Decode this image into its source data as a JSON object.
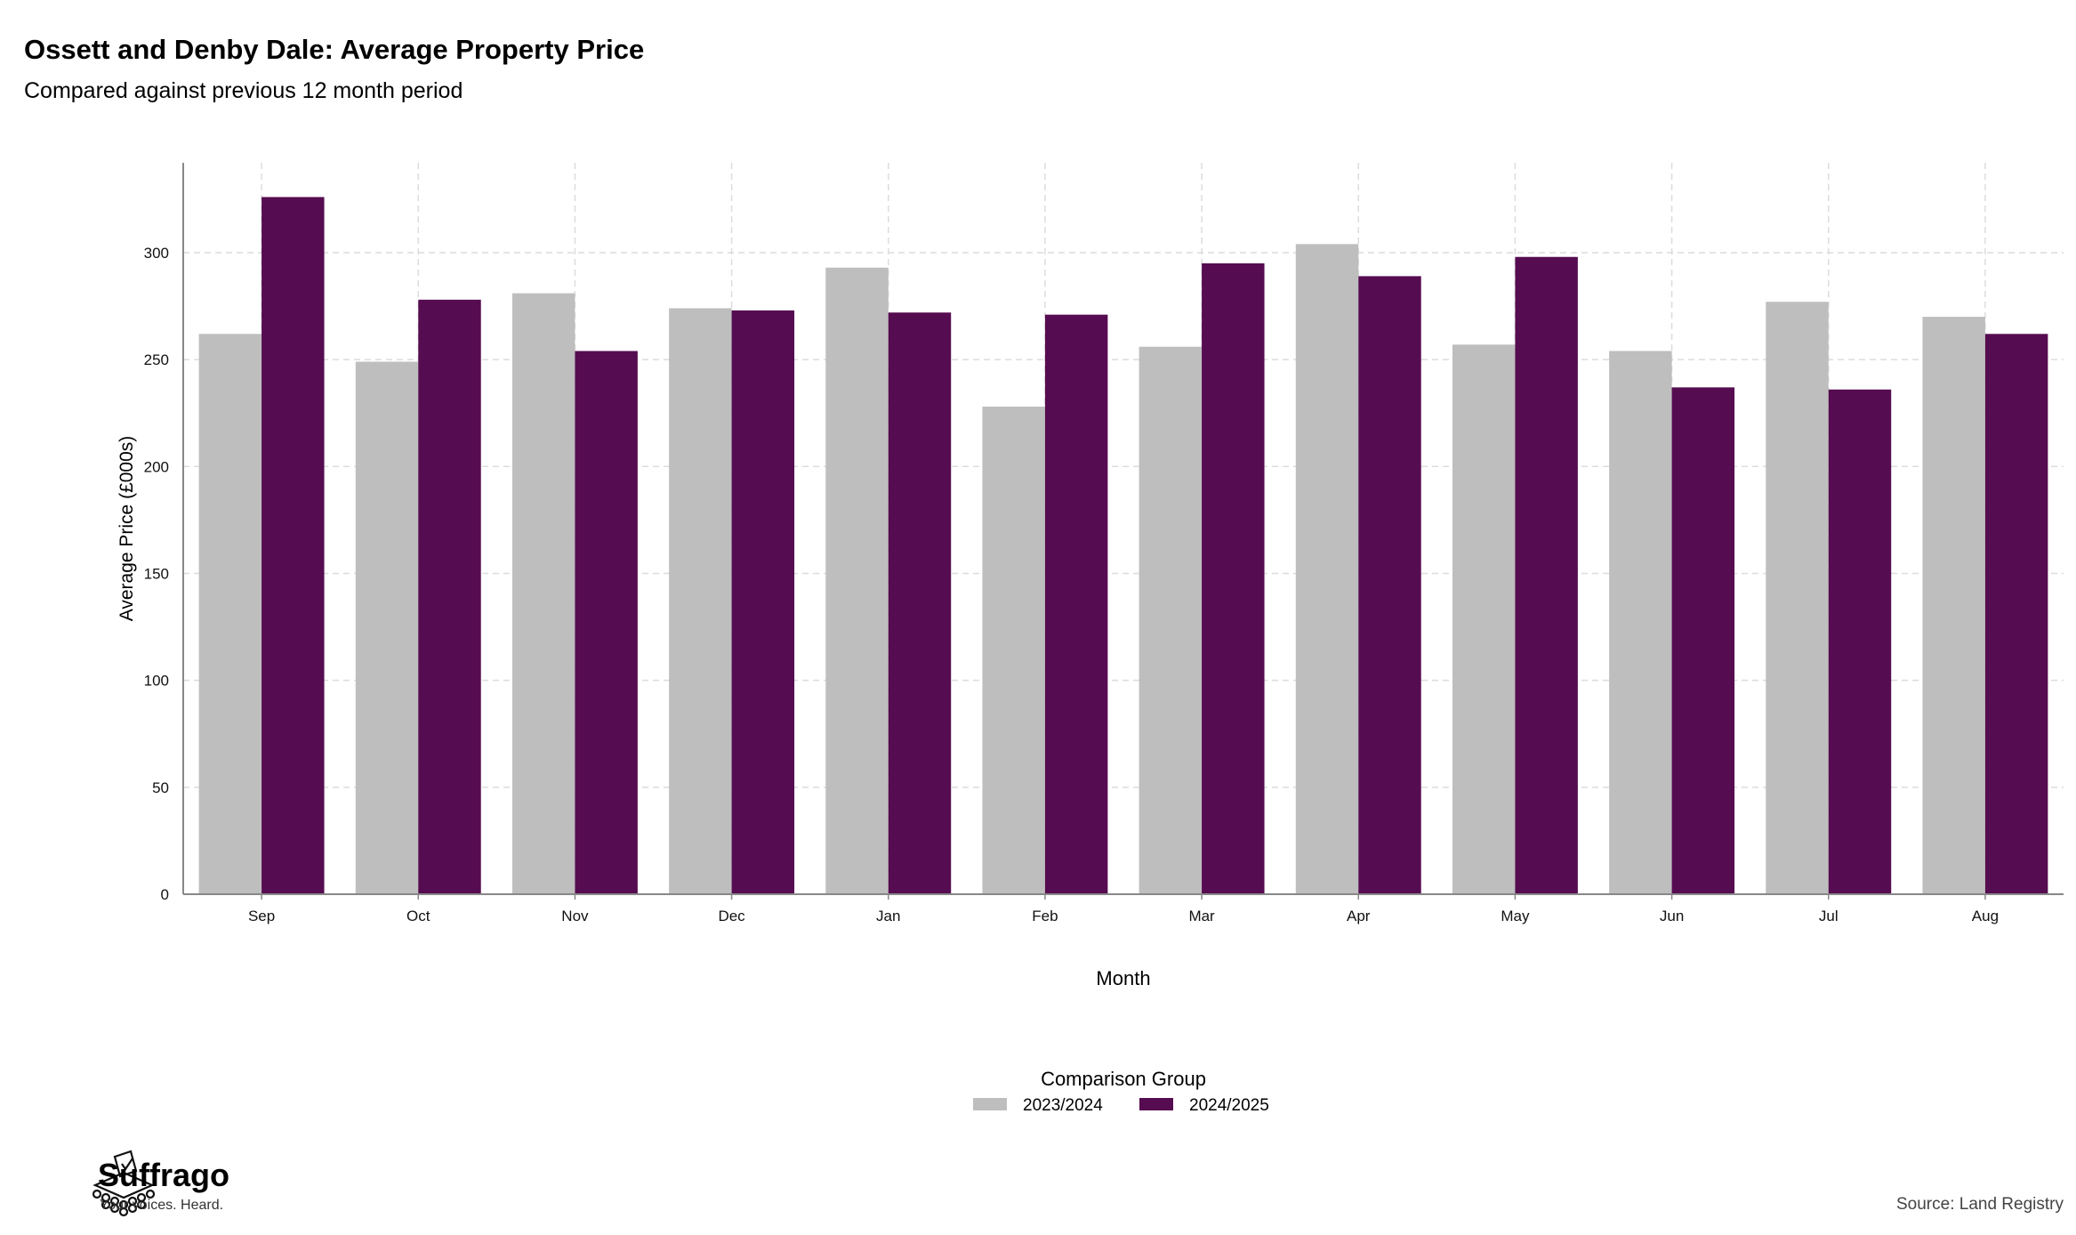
{
  "header": {
    "title": "Ossett and Denby Dale: Average Property Price",
    "subtitle": "Compared against previous 12 month period"
  },
  "footer": {
    "brand": "Suffrago",
    "tagline": "Your voices. Heard.",
    "source": "Source: Land Registry"
  },
  "colors": {
    "series_2023_2024": "#bebebe",
    "series_2024_2025": "#560c50",
    "grid": "#dcdcdc",
    "axis": "#888888"
  },
  "chart_data": {
    "type": "bar",
    "title": "Ossett and Denby Dale: Average Property Price",
    "subtitle": "Compared against previous 12 month period",
    "xlabel": "Month",
    "ylabel": "Average Price (£000s)",
    "categories": [
      "Sep",
      "Oct",
      "Nov",
      "Dec",
      "Jan",
      "Feb",
      "Mar",
      "Apr",
      "May",
      "Jun",
      "Jul",
      "Aug"
    ],
    "ylim": [
      0,
      342
    ],
    "yticks": [
      0,
      50,
      100,
      150,
      200,
      250,
      300
    ],
    "grid": true,
    "legend_title": "Comparison Group",
    "legend_position": "bottom",
    "series": [
      {
        "name": "2023/2024",
        "values": [
          262,
          249,
          281,
          274,
          293,
          228,
          256,
          304,
          257,
          254,
          277,
          270
        ]
      },
      {
        "name": "2024/2025",
        "values": [
          326,
          278,
          254,
          273,
          272,
          271,
          295,
          289,
          298,
          237,
          236,
          262
        ]
      }
    ]
  }
}
